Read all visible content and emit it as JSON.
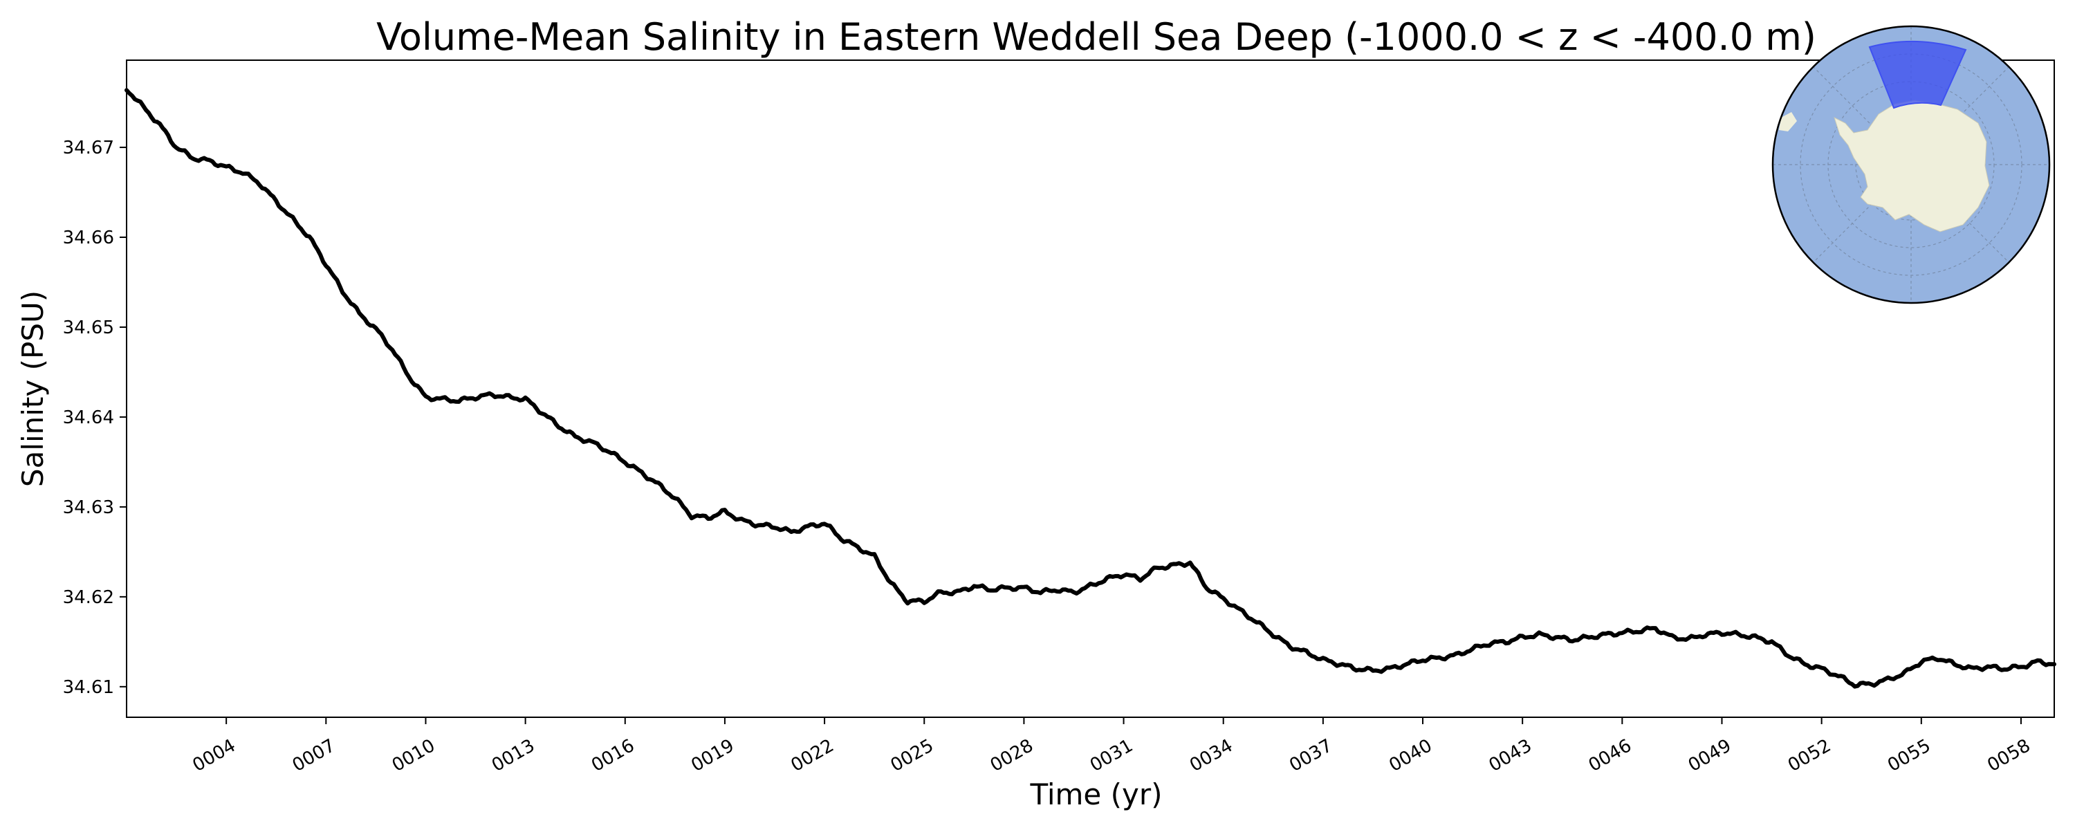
{
  "chart_data": {
    "type": "line",
    "title": "Volume-Mean Salinity in Eastern Weddell Sea Deep (-1000.0 < z < -400.0 m)",
    "xlabel": "Time (yr)",
    "ylabel": "Salinity (PSU)",
    "xlim": [
      1.0,
      59.0
    ],
    "ylim": [
      34.6066,
      34.6797
    ],
    "xticks": [
      {
        "value": 4,
        "label": "0004"
      },
      {
        "value": 7,
        "label": "0007"
      },
      {
        "value": 10,
        "label": "0010"
      },
      {
        "value": 13,
        "label": "0013"
      },
      {
        "value": 16,
        "label": "0016"
      },
      {
        "value": 19,
        "label": "0019"
      },
      {
        "value": 22,
        "label": "0022"
      },
      {
        "value": 25,
        "label": "0025"
      },
      {
        "value": 28,
        "label": "0028"
      },
      {
        "value": 31,
        "label": "0031"
      },
      {
        "value": 34,
        "label": "0034"
      },
      {
        "value": 37,
        "label": "0037"
      },
      {
        "value": 40,
        "label": "0040"
      },
      {
        "value": 43,
        "label": "0043"
      },
      {
        "value": 46,
        "label": "0046"
      },
      {
        "value": 49,
        "label": "0049"
      },
      {
        "value": 52,
        "label": "0052"
      },
      {
        "value": 55,
        "label": "0055"
      },
      {
        "value": 58,
        "label": "0058"
      }
    ],
    "yticks": [
      {
        "value": 34.61,
        "label": "34.61"
      },
      {
        "value": 34.62,
        "label": "34.62"
      },
      {
        "value": 34.63,
        "label": "34.63"
      },
      {
        "value": 34.64,
        "label": "34.64"
      },
      {
        "value": 34.65,
        "label": "34.65"
      },
      {
        "value": 34.66,
        "label": "34.66"
      },
      {
        "value": 34.67,
        "label": "34.67"
      }
    ],
    "grid": false,
    "series": [
      {
        "name": "Eastern Weddell Sea Deep salinity",
        "color": "#000000",
        "x": [
          1.0,
          1.5,
          2.0,
          2.5,
          3.0,
          3.5,
          4.0,
          4.5,
          5.0,
          5.5,
          6.0,
          6.5,
          7.0,
          7.5,
          8.0,
          8.5,
          9.0,
          9.5,
          10.0,
          10.5,
          11.0,
          11.5,
          12.0,
          12.5,
          13.0,
          13.5,
          14.0,
          14.5,
          15.0,
          15.5,
          16.0,
          16.5,
          17.0,
          17.5,
          18.0,
          18.5,
          19.0,
          19.5,
          20.0,
          20.5,
          21.0,
          21.5,
          22.0,
          22.5,
          23.0,
          23.5,
          24.0,
          24.5,
          25.0,
          25.5,
          26.0,
          26.5,
          27.0,
          27.5,
          28.0,
          28.5,
          29.0,
          29.5,
          30.0,
          30.5,
          31.0,
          31.5,
          32.0,
          32.5,
          33.0,
          33.5,
          34.0,
          34.5,
          35.0,
          35.5,
          36.0,
          36.5,
          37.0,
          37.5,
          38.0,
          38.5,
          39.0,
          39.5,
          40.0,
          40.5,
          41.0,
          41.5,
          42.0,
          42.5,
          43.0,
          43.5,
          44.0,
          44.5,
          45.0,
          45.5,
          46.0,
          46.5,
          47.0,
          47.5,
          48.0,
          48.5,
          49.0,
          49.5,
          50.0,
          50.5,
          51.0,
          51.5,
          52.0,
          52.5,
          53.0,
          53.5,
          54.0,
          54.5,
          55.0,
          55.5,
          56.0,
          56.5,
          57.0,
          57.5,
          58.0,
          58.5,
          59.0
        ],
        "y": [
          34.6765,
          34.6745,
          34.6725,
          34.67,
          34.6688,
          34.6685,
          34.6678,
          34.6672,
          34.666,
          34.664,
          34.662,
          34.66,
          34.657,
          34.654,
          34.6515,
          34.6498,
          34.6475,
          34.6445,
          34.6422,
          34.642,
          34.6418,
          34.6422,
          34.6425,
          34.6422,
          34.642,
          34.6405,
          34.639,
          34.6378,
          34.6372,
          34.6362,
          34.635,
          34.6338,
          34.6325,
          34.631,
          34.629,
          34.6288,
          34.6295,
          34.6285,
          34.628,
          34.6278,
          34.6272,
          34.6278,
          34.6282,
          34.6265,
          34.6255,
          34.6245,
          34.6215,
          34.6195,
          34.6195,
          34.6205,
          34.6205,
          34.6212,
          34.6208,
          34.621,
          34.621,
          34.6205,
          34.6208,
          34.6205,
          34.6212,
          34.622,
          34.6225,
          34.622,
          34.6232,
          34.6235,
          34.6238,
          34.621,
          34.6198,
          34.6185,
          34.6172,
          34.6158,
          34.6145,
          34.6138,
          34.613,
          34.6125,
          34.612,
          34.6118,
          34.612,
          34.6125,
          34.613,
          34.6132,
          34.6135,
          34.6142,
          34.6148,
          34.615,
          34.6155,
          34.6158,
          34.6155,
          34.6152,
          34.6155,
          34.6158,
          34.616,
          34.6162,
          34.6165,
          34.6155,
          34.6153,
          34.6158,
          34.616,
          34.6158,
          34.6155,
          34.615,
          34.6135,
          34.6125,
          34.612,
          34.6112,
          34.6102,
          34.6103,
          34.6108,
          34.6115,
          34.6128,
          34.6132,
          34.6125,
          34.612,
          34.6122,
          34.612,
          34.6122,
          34.6128,
          34.6125
        ]
      }
    ],
    "inset_map": {
      "projection": "south-polar stereographic",
      "ocean_color": "#95b3e0",
      "land_color": "#efefdb",
      "region_color": "#3f51f0",
      "region": "Eastern Weddell Sea"
    }
  }
}
